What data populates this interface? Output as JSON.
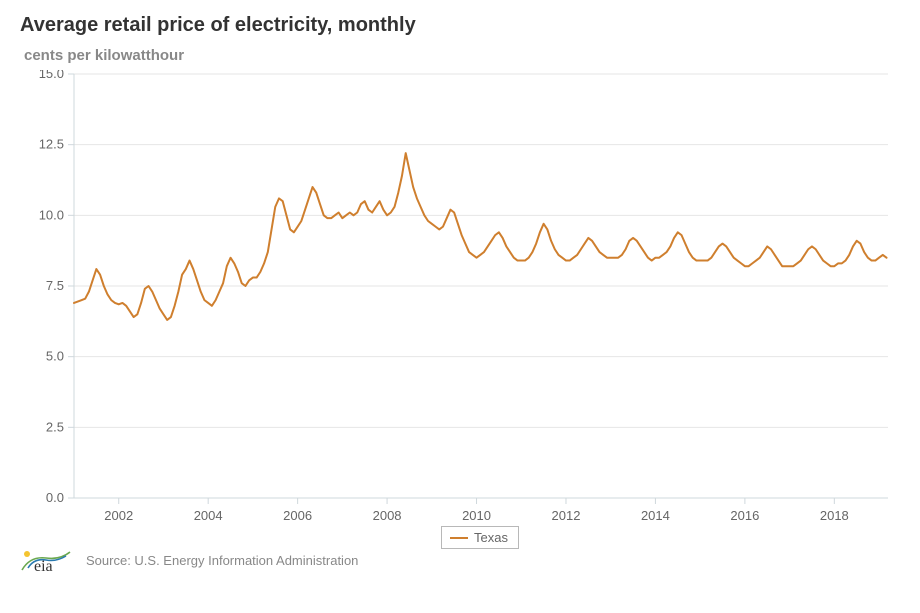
{
  "title": "Average retail price of electricity, monthly",
  "subtitle": "cents per kilowatthour",
  "attribution": "Source: U.S. Energy Information Administration",
  "chart": {
    "type": "line",
    "background_color": "#ffffff",
    "grid_color": "#e6e6e6",
    "axis_color": "#cfd8dc",
    "tick_label_color": "#666666",
    "label_fontsize": 13,
    "title_fontsize": 20,
    "line_color": "#cf7f2e",
    "line_width": 2,
    "legend": {
      "label": "Texas",
      "position": "bottom-center",
      "border_color": "#b8b8b8"
    },
    "x": {
      "min": 2001.0,
      "max": 2019.2,
      "tick_start": 2002,
      "tick_step": 2,
      "tick_end": 2018
    },
    "y": {
      "min": 0.0,
      "max": 15.0,
      "tick_step": 2.5,
      "label_format": "fixed1"
    },
    "series": [
      {
        "name": "Texas",
        "color": "#cf7f2e",
        "x_start": 2001.0,
        "x_step_months": 1,
        "values": [
          6.9,
          6.95,
          7.0,
          7.05,
          7.3,
          7.7,
          8.1,
          7.9,
          7.5,
          7.2,
          7.0,
          6.9,
          6.85,
          6.9,
          6.8,
          6.6,
          6.4,
          6.5,
          6.9,
          7.4,
          7.5,
          7.3,
          7.0,
          6.7,
          6.5,
          6.3,
          6.4,
          6.8,
          7.3,
          7.9,
          8.1,
          8.4,
          8.1,
          7.7,
          7.3,
          7.0,
          6.9,
          6.8,
          7.0,
          7.3,
          7.6,
          8.2,
          8.5,
          8.3,
          8.0,
          7.6,
          7.5,
          7.7,
          7.8,
          7.8,
          8.0,
          8.3,
          8.7,
          9.5,
          10.3,
          10.6,
          10.5,
          10.0,
          9.5,
          9.4,
          9.6,
          9.8,
          10.2,
          10.6,
          11.0,
          10.8,
          10.4,
          10.0,
          9.9,
          9.9,
          10.0,
          10.1,
          9.9,
          10.0,
          10.1,
          10.0,
          10.1,
          10.4,
          10.5,
          10.2,
          10.1,
          10.3,
          10.5,
          10.2,
          10.0,
          10.1,
          10.3,
          10.8,
          11.4,
          12.2,
          11.6,
          11.0,
          10.6,
          10.3,
          10.0,
          9.8,
          9.7,
          9.6,
          9.5,
          9.6,
          9.9,
          10.2,
          10.1,
          9.7,
          9.3,
          9.0,
          8.7,
          8.6,
          8.5,
          8.6,
          8.7,
          8.9,
          9.1,
          9.3,
          9.4,
          9.2,
          8.9,
          8.7,
          8.5,
          8.4,
          8.4,
          8.4,
          8.5,
          8.7,
          9.0,
          9.4,
          9.7,
          9.5,
          9.1,
          8.8,
          8.6,
          8.5,
          8.4,
          8.4,
          8.5,
          8.6,
          8.8,
          9.0,
          9.2,
          9.1,
          8.9,
          8.7,
          8.6,
          8.5,
          8.5,
          8.5,
          8.5,
          8.6,
          8.8,
          9.1,
          9.2,
          9.1,
          8.9,
          8.7,
          8.5,
          8.4,
          8.5,
          8.5,
          8.6,
          8.7,
          8.9,
          9.2,
          9.4,
          9.3,
          9.0,
          8.7,
          8.5,
          8.4,
          8.4,
          8.4,
          8.4,
          8.5,
          8.7,
          8.9,
          9.0,
          8.9,
          8.7,
          8.5,
          8.4,
          8.3,
          8.2,
          8.2,
          8.3,
          8.4,
          8.5,
          8.7,
          8.9,
          8.8,
          8.6,
          8.4,
          8.2,
          8.2,
          8.2,
          8.2,
          8.3,
          8.4,
          8.6,
          8.8,
          8.9,
          8.8,
          8.6,
          8.4,
          8.3,
          8.2,
          8.2,
          8.3,
          8.3,
          8.4,
          8.6,
          8.9,
          9.1,
          9.0,
          8.7,
          8.5,
          8.4,
          8.4,
          8.5,
          8.6,
          8.5
        ]
      }
    ]
  }
}
